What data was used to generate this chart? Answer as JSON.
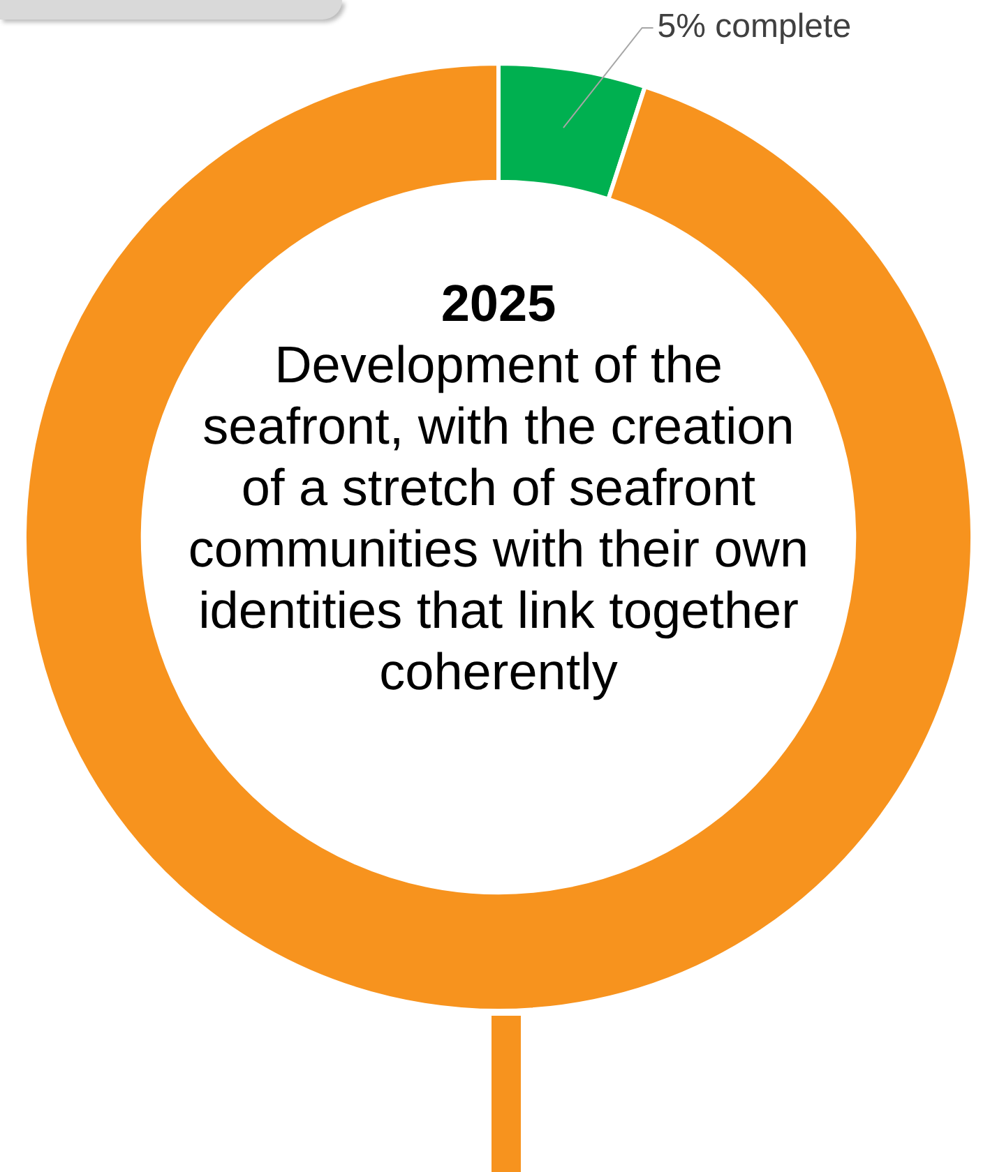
{
  "chart_data": {
    "type": "donut",
    "title": "2025",
    "subtitle": "Development of the seafront, with the creation of a stretch of seafront communities with their own identities that link together coherently",
    "categories": [
      null,
      null
    ],
    "values": [
      5,
      95
    ],
    "colors": [
      "#00b050",
      "#f7931e"
    ],
    "value_labels": [
      "5% complete",
      null
    ],
    "legend": false
  }
}
